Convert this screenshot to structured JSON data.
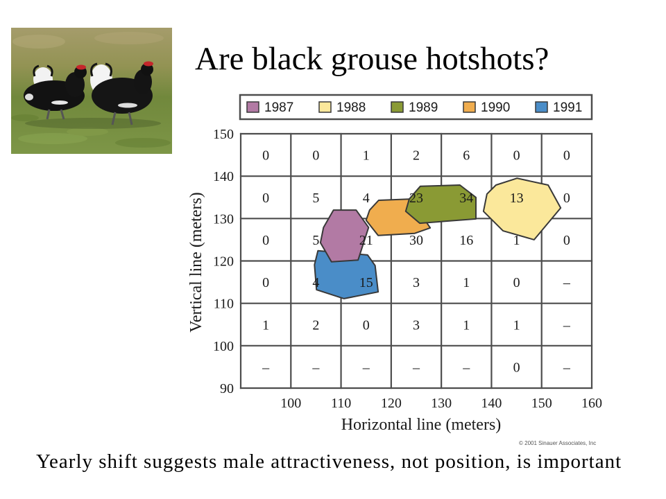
{
  "slide": {
    "title": "Are black grouse hotshots?",
    "caption": "Yearly shift suggests male attractiveness, not position, is important",
    "copyright": "© 2001 Sinauer Associates, Inc"
  },
  "chart_data": {
    "type": "heatmap",
    "xlabel": "Horizontal line (meters)",
    "ylabel": "Vertical line (meters)",
    "xlim": [
      90,
      160
    ],
    "ylim": [
      90,
      150
    ],
    "x_tick_labels": [
      "100",
      "110",
      "120",
      "130",
      "140",
      "150",
      "160"
    ],
    "y_tick_labels": [
      "150",
      "140",
      "130",
      "120",
      "110",
      "100",
      "90"
    ],
    "grid": true,
    "legend_position": "top",
    "values": [
      [
        0,
        0,
        1,
        2,
        6,
        0,
        0
      ],
      [
        0,
        5,
        4,
        23,
        34,
        13,
        0
      ],
      [
        0,
        5,
        21,
        30,
        16,
        1,
        0
      ],
      [
        0,
        4,
        15,
        3,
        1,
        0,
        "–"
      ],
      [
        1,
        2,
        0,
        3,
        1,
        1,
        "–"
      ],
      [
        "–",
        "–",
        "–",
        "–",
        "–",
        0,
        "–"
      ]
    ],
    "series": [
      {
        "name": "1987",
        "color": "#b27aa4",
        "polygon": [
          [
            108.5,
            132.0
          ],
          [
            113.0,
            132.0
          ],
          [
            115.5,
            127.9
          ],
          [
            113.4,
            120.2
          ],
          [
            108.1,
            119.8
          ],
          [
            105.9,
            124.3
          ],
          [
            106.5,
            127.9
          ]
        ]
      },
      {
        "name": "1988",
        "color": "#fbe89b",
        "polygon": [
          [
            140.9,
            137.9
          ],
          [
            145.1,
            139.5
          ],
          [
            151.3,
            137.9
          ],
          [
            153.8,
            132.5
          ],
          [
            148.5,
            125.0
          ],
          [
            142.3,
            127.1
          ],
          [
            138.4,
            131.7
          ],
          [
            139.1,
            135.8
          ]
        ]
      },
      {
        "name": "1989",
        "color": "#8a9a34",
        "polygon": [
          [
            125.8,
            137.6
          ],
          [
            133.7,
            137.9
          ],
          [
            136.9,
            135.0
          ],
          [
            136.9,
            129.9
          ],
          [
            125.7,
            128.9
          ],
          [
            122.9,
            131.7
          ],
          [
            123.6,
            134.6
          ]
        ]
      },
      {
        "name": "1990",
        "color": "#f0ad4e",
        "polygon": [
          [
            117.5,
            134.3
          ],
          [
            123.6,
            134.6
          ],
          [
            126.4,
            130.2
          ],
          [
            127.8,
            127.8
          ],
          [
            124.7,
            126.5
          ],
          [
            117.4,
            126.0
          ],
          [
            115.0,
            129.6
          ],
          [
            115.7,
            132.0
          ]
        ]
      },
      {
        "name": "1991",
        "color": "#4a8dc8",
        "polygon": [
          [
            105.4,
            122.4
          ],
          [
            115.3,
            121.4
          ],
          [
            116.8,
            118.9
          ],
          [
            117.4,
            112.7
          ],
          [
            110.6,
            111.1
          ],
          [
            105.1,
            113.2
          ],
          [
            104.7,
            119.1
          ]
        ]
      }
    ]
  }
}
